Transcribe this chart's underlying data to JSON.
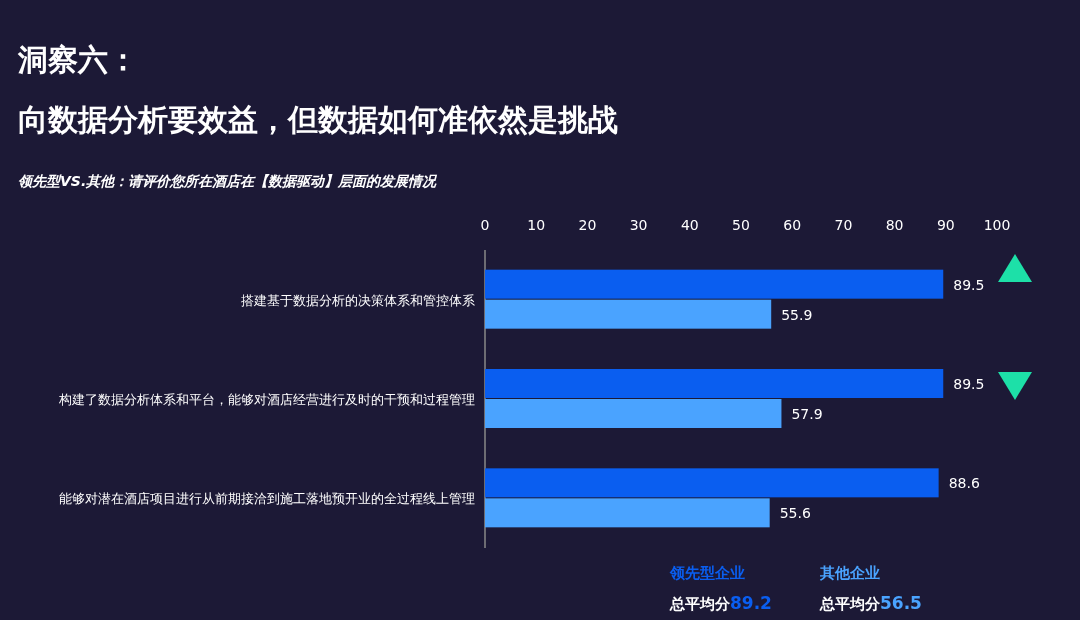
{
  "chart_data": {
    "type": "bar",
    "orientation": "horizontal",
    "title": "洞察六：",
    "subtitle": "向数据分析要效益，但数据如何准依然是挑战",
    "annotations": [
      "领先型VS.其他：请评价您所在酒店在【数据驱动】层面的发展情况",
      "总平均分89.2",
      "总平均分56.5"
    ],
    "categories": [
      "搭建基于数据分析的决策体系和管控体系",
      "构建了数据分析体系和平台，能够对酒店经营进行及时的干预和过程管理",
      "能够对潜在酒店项目进行从前期接洽到施工落地预开业的全过程线上管理"
    ],
    "series": [
      {
        "name": "领先型企业",
        "color": "#0a5ef0",
        "values": [
          89.5,
          89.5,
          88.6
        ]
      },
      {
        "name": "其他企业",
        "color": "#4aa3ff",
        "values": [
          55.9,
          57.9,
          55.6
        ]
      }
    ],
    "xlim": [
      0,
      100
    ],
    "xticks": [
      0,
      10,
      20,
      30,
      40,
      50,
      60,
      70,
      80,
      90,
      100
    ],
    "data_labels": true,
    "grid": false,
    "legend": "bottom"
  }
}
